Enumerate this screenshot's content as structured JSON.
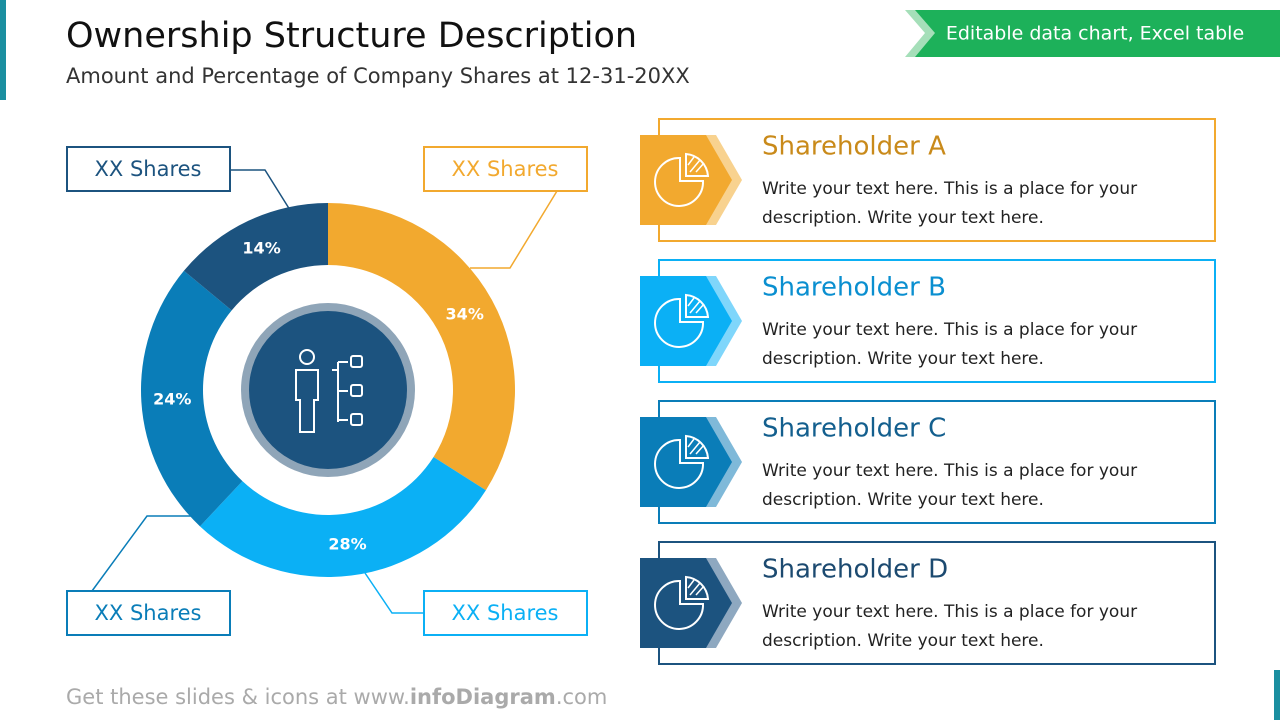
{
  "header": {
    "title": "Ownership Structure Description",
    "subtitle": "Amount and Percentage of Company Shares at 12-31-20XX"
  },
  "badge": "Editable data chart, Excel table",
  "chart_data": {
    "type": "donut",
    "categories": [
      "Shareholder A",
      "Shareholder B",
      "Shareholder C",
      "Shareholder D"
    ],
    "values": [
      34,
      28,
      24,
      14
    ],
    "value_labels": [
      "34%",
      "28%",
      "24%",
      "14%"
    ],
    "colors": [
      "#f2a92f",
      "#0bb0f5",
      "#0a7db8",
      "#1c537f"
    ],
    "annotations": [
      "XX Shares",
      "XX Shares",
      "XX Shares",
      "XX Shares"
    ]
  },
  "cards": [
    {
      "lines": [
        "Write your text here. This is a place for your",
        "description. Write your text here."
      ]
    },
    {
      "lines": [
        "Write your text here. This is a place for your",
        "description. Write your text here."
      ]
    },
    {
      "lines": [
        "Write your text here. This is a place for your",
        "description. Write your text here."
      ]
    },
    {
      "lines": [
        "Write your text here. This is a place for your",
        "description. Write your text here."
      ]
    }
  ],
  "footer": [
    "Get these slides & icons at www.",
    "infoDiagram",
    ".com"
  ]
}
